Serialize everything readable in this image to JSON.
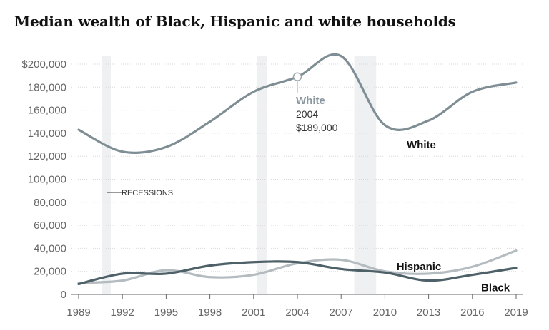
{
  "title": "Median wealth of Black, Hispanic and white households",
  "chart_data": {
    "type": "line",
    "title": "Median wealth of Black, Hispanic and white households",
    "x": [
      1989,
      1992,
      1995,
      1998,
      2001,
      2004,
      2007,
      2010,
      2013,
      2016,
      2019
    ],
    "xlim": [
      1989,
      2019
    ],
    "ylim": [
      0,
      200000
    ],
    "x_ticks": [
      1989,
      1992,
      1995,
      1998,
      2001,
      2004,
      2007,
      2010,
      2013,
      2016,
      2019
    ],
    "y_ticks": [
      {
        "value": 0,
        "label": "0"
      },
      {
        "value": 20000,
        "label": "20,000"
      },
      {
        "value": 40000,
        "label": "40,000"
      },
      {
        "value": 60000,
        "label": "60,000"
      },
      {
        "value": 80000,
        "label": "80,000"
      },
      {
        "value": 100000,
        "label": "100,000"
      },
      {
        "value": 120000,
        "label": "120,000"
      },
      {
        "value": 140000,
        "label": "140,000"
      },
      {
        "value": 160000,
        "label": "160,000"
      },
      {
        "value": 180000,
        "label": "180,000"
      },
      {
        "value": 200000,
        "label": "$200,000"
      }
    ],
    "grid": "horizontal",
    "series": [
      {
        "name": "White",
        "color": "#7f8d94",
        "values": [
          143000,
          124000,
          128000,
          150000,
          176000,
          189000,
          207000,
          147000,
          151000,
          176000,
          184000
        ]
      },
      {
        "name": "Hispanic",
        "color": "#b4bcc0",
        "values": [
          10000,
          12000,
          21000,
          15000,
          17000,
          27000,
          30000,
          20000,
          18000,
          24000,
          38000
        ]
      },
      {
        "name": "Black",
        "color": "#4e6068",
        "values": [
          9000,
          18000,
          18000,
          25000,
          28000,
          28000,
          22000,
          19000,
          12000,
          17000,
          23000
        ]
      }
    ],
    "series_labels": [
      {
        "series": "White",
        "text": "White",
        "at_year": 2011.5,
        "at_value": 130000
      },
      {
        "series": "Hispanic",
        "text": "Hispanic",
        "at_year": 2010.8,
        "at_value": 24000
      },
      {
        "series": "Black",
        "text": "Black",
        "at_year": 2016.6,
        "at_value": 6000
      }
    ],
    "recessions": [
      [
        1990.6,
        1991.2
      ],
      [
        2001.2,
        2001.9
      ],
      [
        2007.9,
        2009.4
      ]
    ],
    "recession_label": "RECESSIONS",
    "annotation": {
      "series": "White",
      "name": "White",
      "year_label": "2004",
      "value_label": "$189,000",
      "x": 2004,
      "y": 189000
    }
  }
}
